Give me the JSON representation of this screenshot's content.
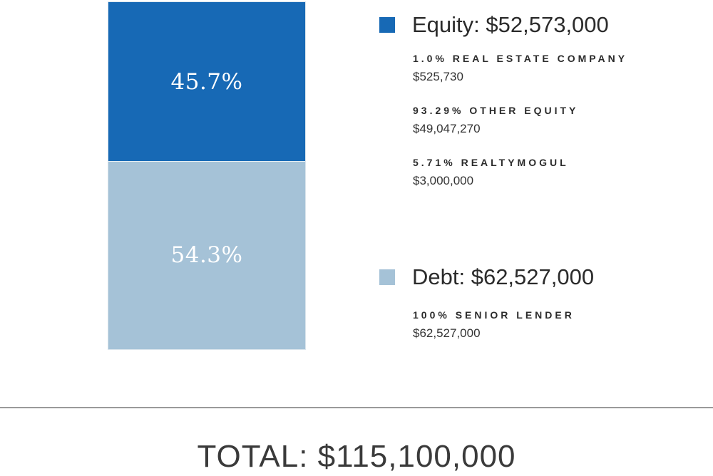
{
  "chart_data": {
    "type": "bar",
    "subtype": "stacked-100",
    "title": "",
    "segments": [
      {
        "name": "Equity",
        "percent": 45.7,
        "percent_label": "45.7%",
        "color": "#1769b5"
      },
      {
        "name": "Debt",
        "percent": 54.3,
        "percent_label": "54.3%",
        "color": "#a5c2d7"
      }
    ],
    "legend": [
      {
        "title": "Equity: $52,573,000",
        "color": "#1769b5",
        "amount": 52573000,
        "items": [
          {
            "name": "1.0% REAL ESTATE COMPANY",
            "value": "$525,730"
          },
          {
            "name": "93.29% OTHER EQUITY",
            "value": "$49,047,270"
          },
          {
            "name": "5.71% REALTYMOGUL",
            "value": "$3,000,000"
          }
        ]
      },
      {
        "title": "Debt: $62,527,000",
        "color": "#a5c2d7",
        "amount": 62527000,
        "items": [
          {
            "name": "100% SENIOR LENDER",
            "value": "$62,527,000"
          }
        ]
      }
    ],
    "legend_position": "right",
    "total_label": "TOTAL: $115,100,000",
    "total": 115100000
  }
}
